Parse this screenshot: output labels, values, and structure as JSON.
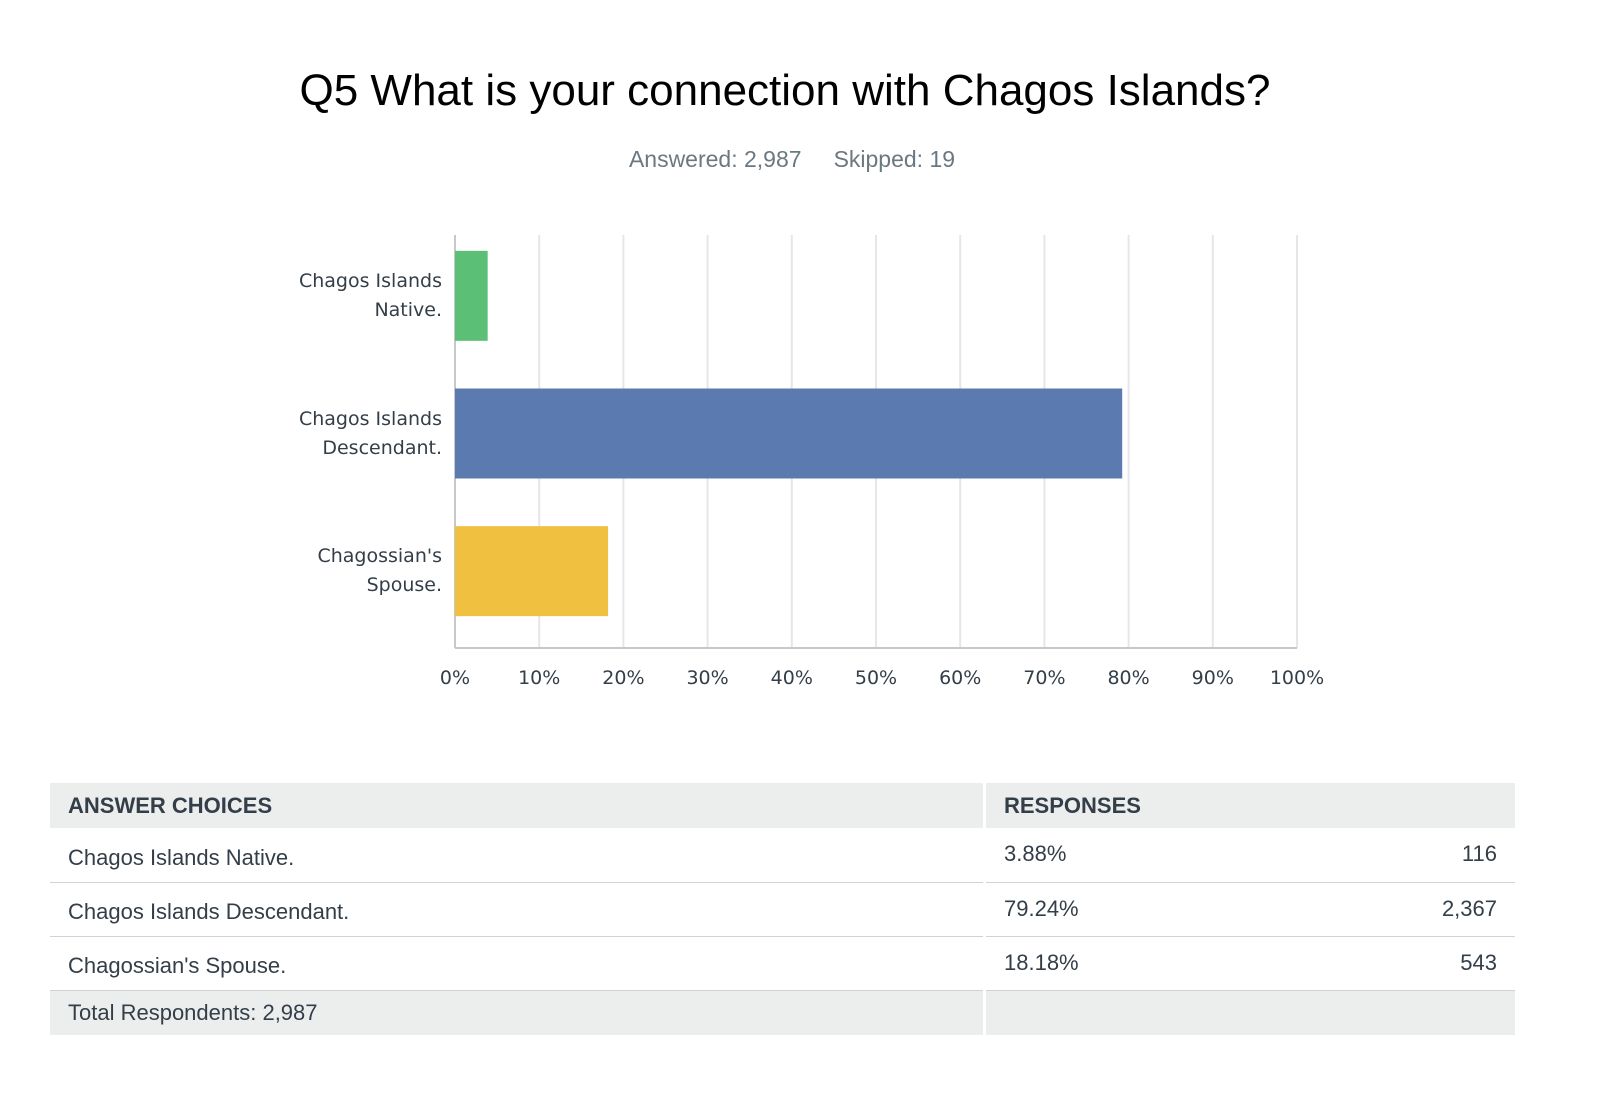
{
  "chart_data": {
    "type": "hbar",
    "title": "Q5 What is your connection with Chagos Islands?",
    "subtitle": [
      "Answered: 2,987",
      "Skipped: 19"
    ],
    "categories": [
      "Chagos Islands Native.",
      "Chagos Islands Descendant.",
      "Chagossian's Spouse."
    ],
    "values": [
      3.88,
      79.24,
      18.18
    ],
    "colors": [
      "#5cbf76",
      "#5b7bb0",
      "#f0c040"
    ],
    "xlim": [
      0,
      100
    ],
    "xticks": [
      {
        "value": 0,
        "label": "0%"
      },
      {
        "value": 10,
        "label": "10%"
      },
      {
        "value": 20,
        "label": "20%"
      },
      {
        "value": 30,
        "label": "30%"
      },
      {
        "value": 40,
        "label": "40%"
      },
      {
        "value": 50,
        "label": "50%"
      },
      {
        "value": 60,
        "label": "60%"
      },
      {
        "value": 70,
        "label": "70%"
      },
      {
        "value": 80,
        "label": "80%"
      },
      {
        "value": 90,
        "label": "90%"
      },
      {
        "value": 100,
        "label": "100%"
      }
    ],
    "grid": true
  },
  "table": {
    "headers": [
      "ANSWER CHOICES",
      "RESPONSES"
    ],
    "rows": [
      [
        "Chagos Islands Native.",
        "3.88%",
        "116"
      ],
      [
        "Chagos Islands Descendant.",
        "79.24%",
        "2,367"
      ],
      [
        "Chagossian's Spouse.",
        "18.18%",
        "543"
      ]
    ],
    "total": "Total Respondents: 2,987"
  }
}
